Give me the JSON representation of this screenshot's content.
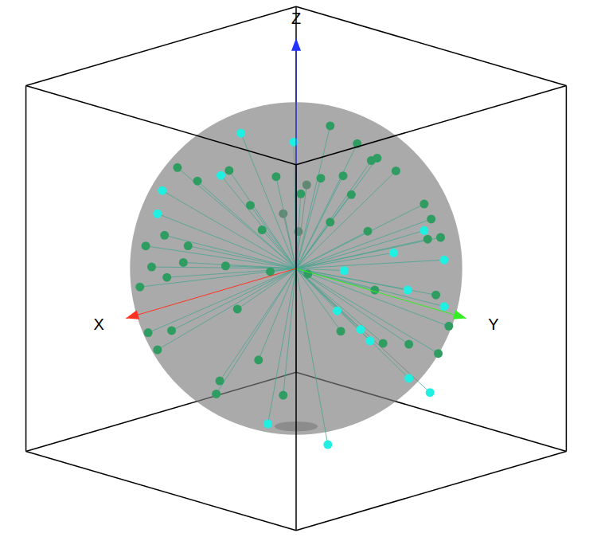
{
  "chart_data": {
    "type": "scatter3d",
    "xlabel": "X",
    "ylabel": "Y",
    "zlabel": "Z",
    "xlim": [
      -1.15,
      1.15
    ],
    "ylim": [
      -1.15,
      1.15
    ],
    "zlim": [
      -1.15,
      1.15
    ],
    "tick_labels": false,
    "sphere_radius": 1,
    "marker": "circle",
    "series": [
      {
        "color": "#2f9d62",
        "x": [
          0.0,
          -0.04,
          -0.04,
          -0.1,
          -0.18,
          0.64,
          0.53,
          0.49,
          0.34,
          0.21,
          0.61,
          0.72,
          0.24,
          0.71,
          0.43,
          0.74,
          -0.28,
          0.24,
          -0.3,
          0.91,
          0.94,
          0.91,
          0.78,
          0.63,
          -0.73,
          -0.2,
          -0.35,
          0.89,
          0.97,
          0.94,
          0.98,
          0.28,
          0.91,
          -0.65,
          0.91,
          -0.21,
          -0.71,
          0.49,
          0.21,
          0.02,
          0.97,
          0.87,
          0.82,
          0.87,
          -0.46,
          0.85,
          0.8,
          -0.41,
          0.65
        ],
        "y": [
          0.29,
          0.48,
          0.6,
          0.59,
          0.67,
          0.07,
          0.36,
          0.53,
          0.55,
          0.61,
          -0.4,
          -0.12,
          0.71,
          0.32,
          0.72,
          0.45,
          0.81,
          0.85,
          0.85,
          -0.21,
          0.02,
          0.31,
          0.56,
          0.73,
          -0.64,
          0.92,
          0.88,
          -0.39,
          0.01,
          -0.29,
          -0.12,
          0.95,
          0.41,
          -0.76,
          -0.42,
          0.98,
          -0.69,
          0.87,
          0.95,
          0.98,
          -0.09,
          -0.39,
          0.5,
          -0.31,
          0.84,
          0.2,
          0.12,
          0.8,
          0.54
        ],
        "z": [
          0.96,
          0.88,
          0.8,
          0.8,
          0.72,
          0.77,
          0.77,
          0.69,
          0.76,
          0.76,
          0.68,
          0.68,
          0.67,
          0.62,
          0.54,
          0.5,
          0.52,
          0.47,
          0.43,
          0.36,
          0.35,
          0.28,
          0.27,
          0.26,
          0.23,
          0.34,
          0.31,
          0.25,
          0.25,
          0.15,
          0.13,
          0.13,
          0.03,
          0.04,
          -0.01,
          0.0,
          -0.07,
          -0.1,
          -0.22,
          -0.26,
          -0.2,
          -0.3,
          -0.29,
          -0.39,
          -0.28,
          -0.48,
          -0.59,
          -0.45,
          -0.54
        ]
      },
      {
        "color": "#1ff0e2",
        "x": [
          0.51,
          0.39,
          0.77,
          0.87,
          0.95,
          -0.08,
          0.52,
          0.19,
          -0.2,
          0.14,
          0.58,
          -0.17,
          0.45,
          0.39,
          0.03,
          0.69,
          0.23,
          -0.57
        ],
        "y": [
          0.04,
          0.37,
          0.13,
          -0.27,
          -0.23,
          1.01,
          0.93,
          1.02,
          1.06,
          1.09,
          0.93,
          1.09,
          1.0,
          1.02,
          0.99,
          0.45,
          0.5,
          0.57
        ],
        "z": [
          0.97,
          0.96,
          0.78,
          0.62,
          0.5,
          0.44,
          0.3,
          0.36,
          0.24,
          0.13,
          0.06,
          -0.04,
          -0.07,
          -0.15,
          -0.47,
          -0.73,
          -0.95,
          -0.78
        ]
      }
    ]
  }
}
